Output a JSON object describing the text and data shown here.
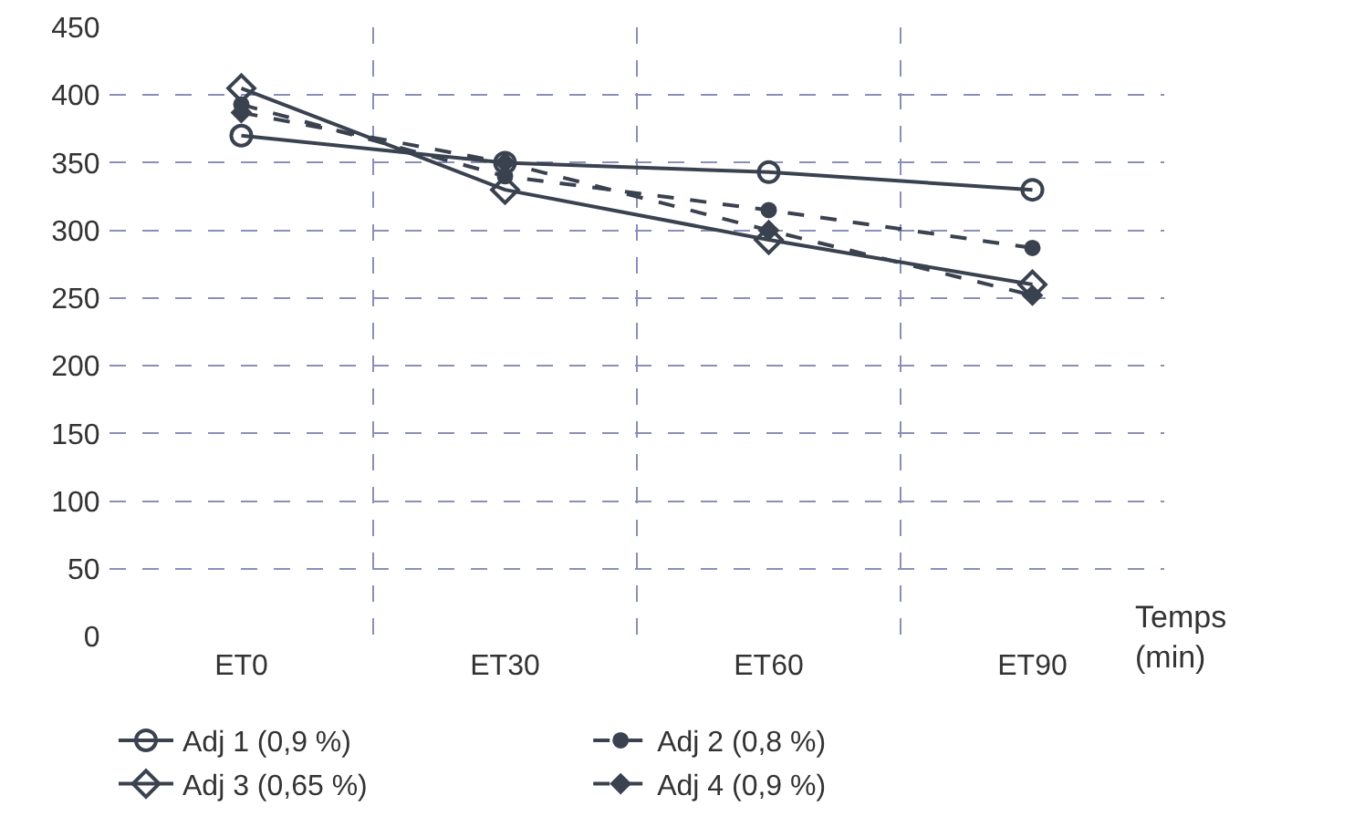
{
  "chart_data": {
    "type": "line",
    "xlabel": "Temps (min)",
    "categories": [
      "ET0",
      "ET30",
      "ET60",
      "ET90"
    ],
    "series": [
      {
        "name": "Adj 1 (0,9 %)",
        "color": "#3a4250",
        "values": [
          370,
          350,
          343,
          330
        ],
        "marker": "circle",
        "line_style": "solid"
      },
      {
        "name": "Adj 2 (0,8 %)",
        "color": "#3a4250",
        "values": [
          393,
          340,
          315,
          287
        ],
        "marker": "circle",
        "line_style": "dashed"
      },
      {
        "name": "Adj 3 (0,65 %)",
        "color": "#3a4250",
        "values": [
          405,
          330,
          293,
          260
        ],
        "marker": "diamond",
        "line_style": "solid"
      },
      {
        "name": "Adj 4 (0,9 %)",
        "color": "#3a4250",
        "values": [
          387,
          350,
          300,
          252
        ],
        "marker": "diamond",
        "line_style": "dashed"
      }
    ],
    "ylim": [
      0,
      450
    ],
    "yticks": [
      0,
      50,
      100,
      150,
      200,
      250,
      300,
      350,
      400,
      450
    ],
    "grid": true,
    "legend": "bottom left"
  }
}
